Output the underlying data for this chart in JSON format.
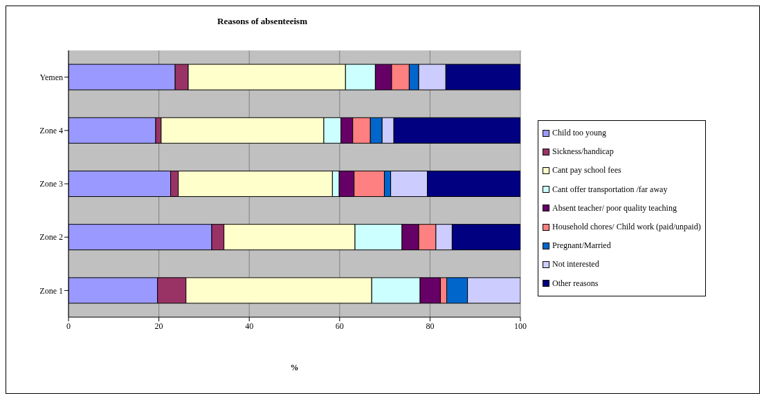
{
  "chart_data": {
    "type": "bar",
    "title": "Reasons of absenteeism",
    "xlabel": "%",
    "orientation": "horizontal",
    "stacked": true,
    "categories": [
      "Yemen",
      "Zone 4",
      "Zone 3",
      "Zone 2",
      "Zone 1"
    ],
    "series": [
      {
        "name": "Child too young",
        "color": "#9999ff",
        "values": [
          23.6,
          19.3,
          22.6,
          31.7,
          19.7
        ]
      },
      {
        "name": "Sickness/handicap",
        "color": "#993366",
        "values": [
          2.9,
          1.2,
          1.7,
          2.7,
          6.3
        ]
      },
      {
        "name": "Cant pay school fees",
        "color": "#ffffcc",
        "values": [
          34.8,
          36.0,
          34.1,
          29.0,
          41.1
        ]
      },
      {
        "name": "Cant offer transportation /far away",
        "color": "#ccffff",
        "values": [
          6.6,
          3.8,
          1.5,
          10.4,
          10.7
        ]
      },
      {
        "name": "Absent teacher/ poor quality teaching",
        "color": "#660066",
        "values": [
          3.6,
          2.6,
          3.3,
          3.7,
          4.5
        ]
      },
      {
        "name": "Household chores/ Child work (paid/unpaid)",
        "color": "#ff8080",
        "values": [
          3.9,
          3.9,
          6.7,
          3.8,
          1.4
        ]
      },
      {
        "name": "Pregnant/Married",
        "color": "#0066cc",
        "values": [
          2.1,
          2.6,
          1.4,
          0,
          4.6
        ]
      },
      {
        "name": "Not interested",
        "color": "#ccccff",
        "values": [
          6.0,
          2.6,
          8.1,
          3.6,
          11.7
        ]
      },
      {
        "name": "Other reasons",
        "color": "#000080",
        "values": [
          16.5,
          28.0,
          20.6,
          15.1,
          0
        ]
      }
    ],
    "xlim": [
      0,
      100
    ],
    "xticks": [
      0,
      20,
      40,
      60,
      80,
      100
    ],
    "grid": "x",
    "legend": "right"
  }
}
